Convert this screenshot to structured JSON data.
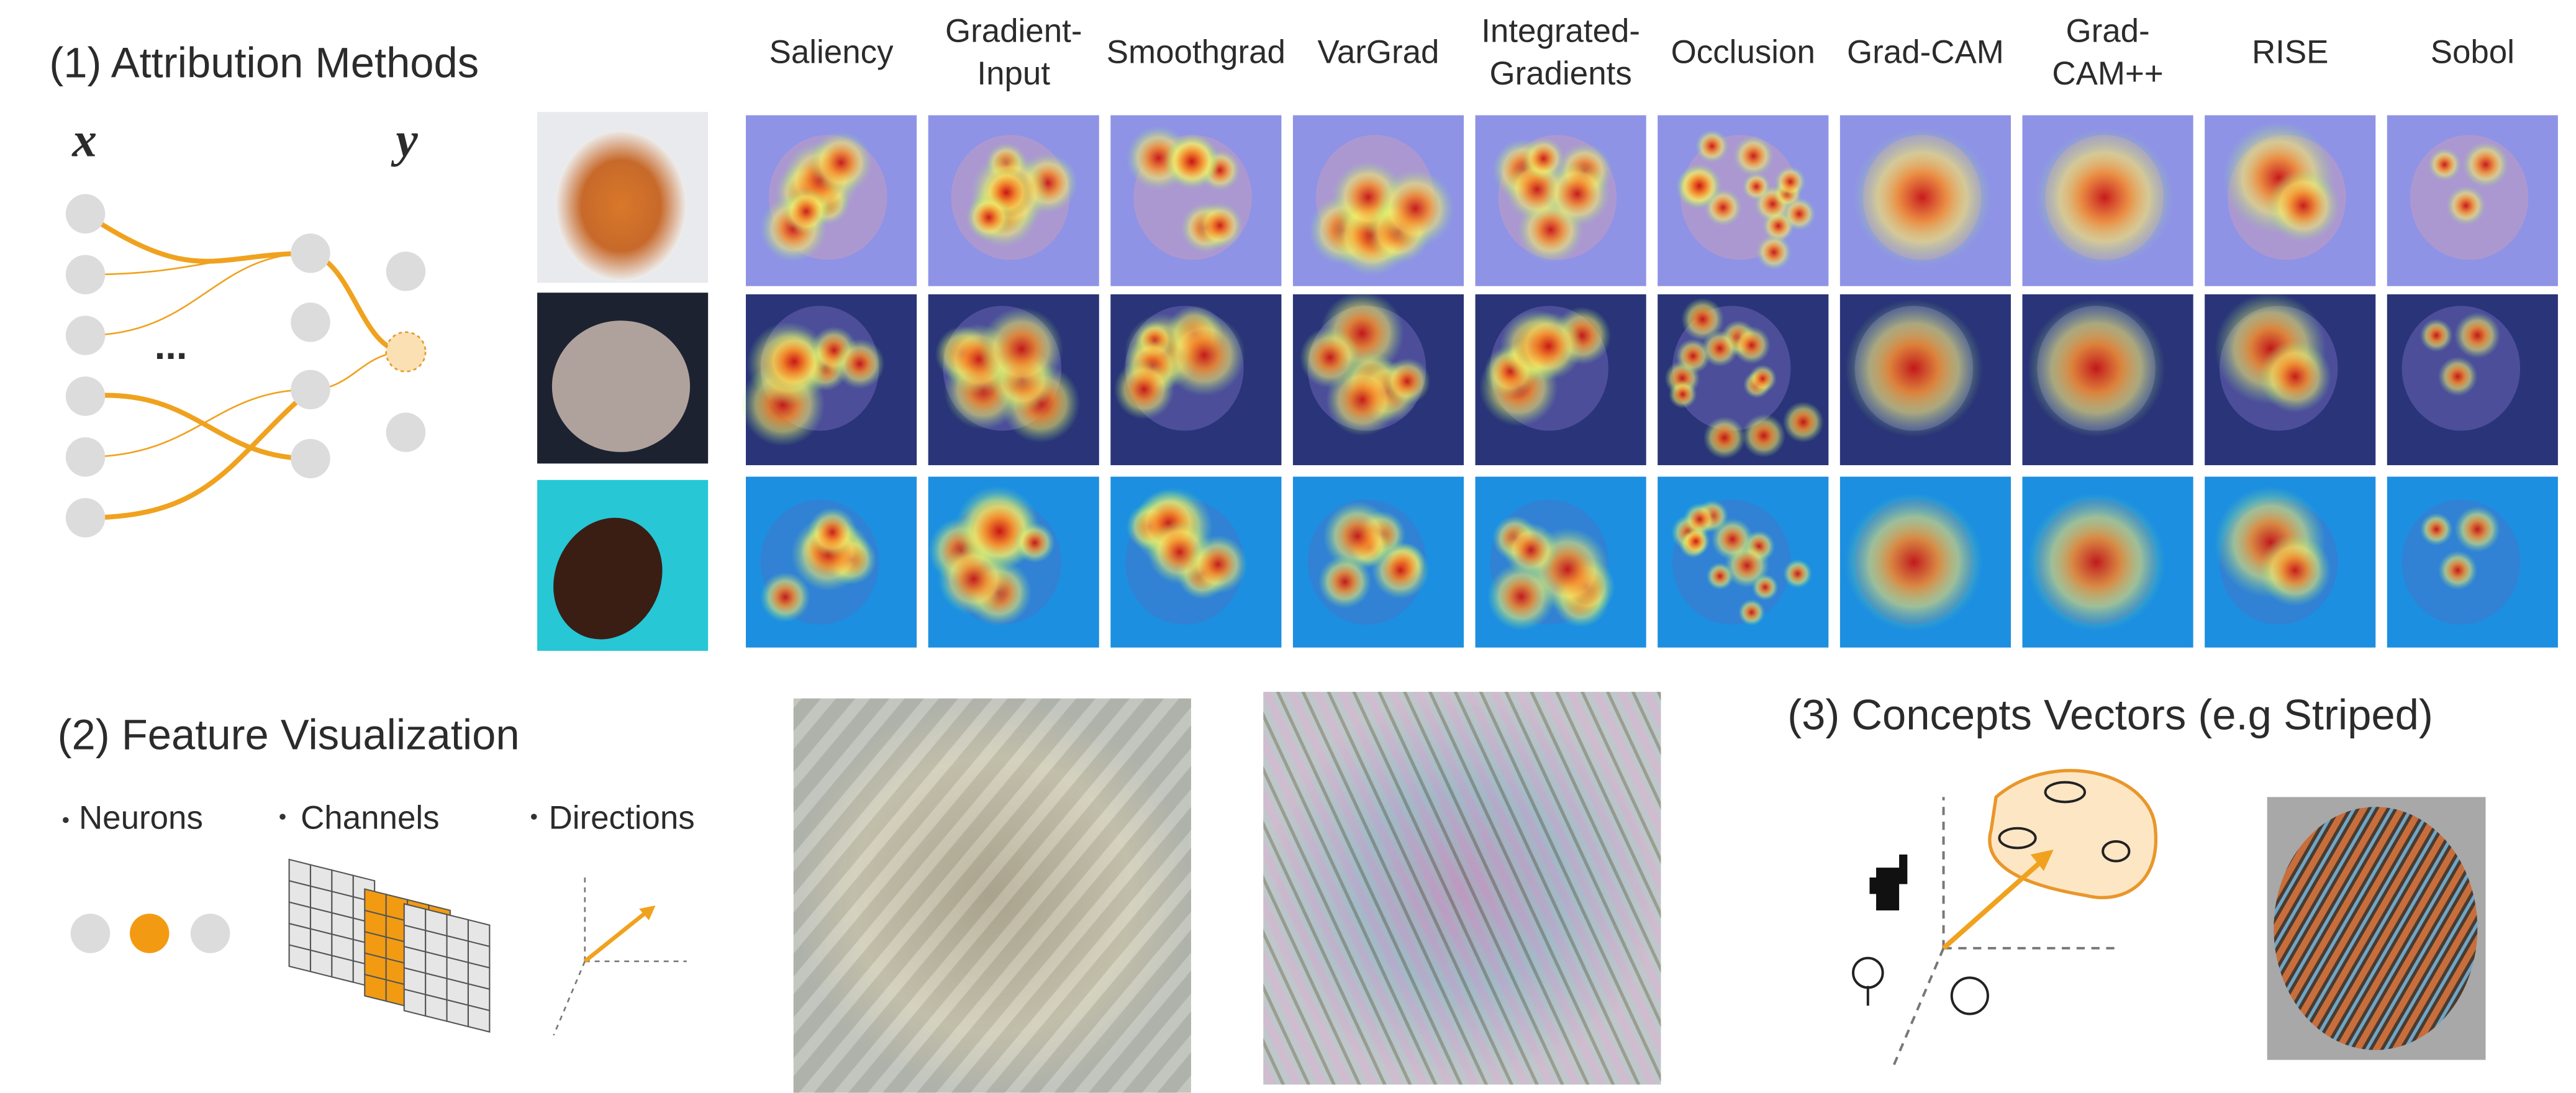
{
  "section_1": {
    "title": "(1) Attribution Methods",
    "x_label": "x",
    "y_label": "y",
    "ellipsis": "..."
  },
  "methods": [
    {
      "lines": [
        "Saliency"
      ]
    },
    {
      "lines": [
        "Gradient-",
        "Input"
      ]
    },
    {
      "lines": [
        "Smoothgrad"
      ]
    },
    {
      "lines": [
        "VarGrad"
      ]
    },
    {
      "lines": [
        "Integrated-",
        "Gradients"
      ]
    },
    {
      "lines": [
        "Occlusion"
      ]
    },
    {
      "lines": [
        "Grad-CAM"
      ]
    },
    {
      "lines": [
        "Grad-",
        "CAM++"
      ]
    },
    {
      "lines": [
        "RISE"
      ]
    },
    {
      "lines": [
        "Sobol"
      ]
    }
  ],
  "section_2": {
    "title": "(2) Feature Visualization",
    "items": [
      "Neurons",
      "Channels",
      "Directions"
    ]
  },
  "section_3": {
    "title": "(3) Concepts Vectors (e.g Striped)"
  }
}
